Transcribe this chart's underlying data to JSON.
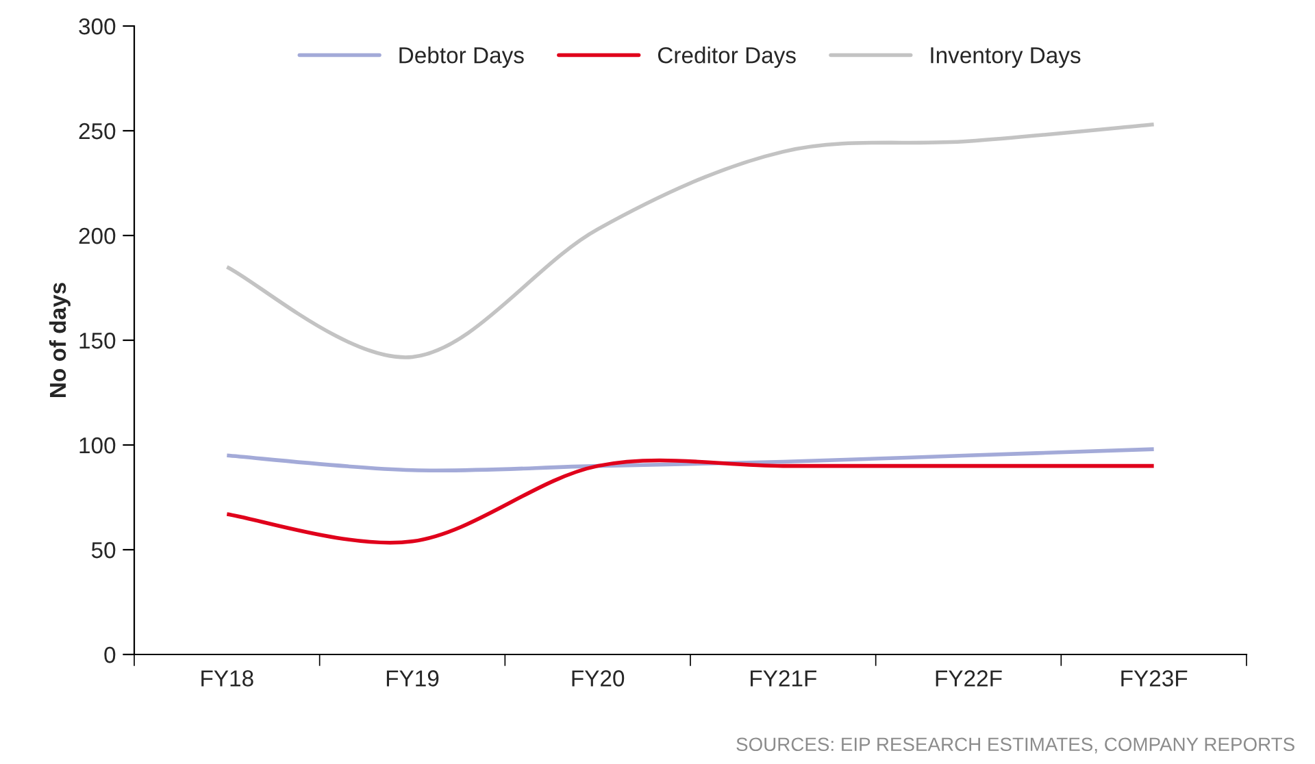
{
  "chart_data": {
    "type": "line",
    "categories": [
      "FY18",
      "FY19",
      "FY20",
      "FY21F",
      "FY22F",
      "FY23F"
    ],
    "series": [
      {
        "name": "Debtor Days",
        "color": "#a3aad8",
        "values": [
          95,
          88,
          90,
          92,
          95,
          98
        ]
      },
      {
        "name": "Creditor Days",
        "color": "#e0001b",
        "values": [
          67,
          54,
          90,
          90,
          90,
          90
        ]
      },
      {
        "name": "Inventory Days",
        "color": "#c3c3c3",
        "values": [
          185,
          142,
          203,
          240,
          245,
          253
        ]
      }
    ],
    "ylabel": "No of days",
    "ylim": [
      0,
      300
    ],
    "yticks": [
      0,
      50,
      100,
      150,
      200,
      250,
      300
    ],
    "grid": false,
    "legend": "top",
    "marker": "none",
    "line_style": "solid",
    "annotations": [
      "SOURCES: EIP RESEARCH ESTIMATES, COMPANY REPORTS"
    ]
  }
}
